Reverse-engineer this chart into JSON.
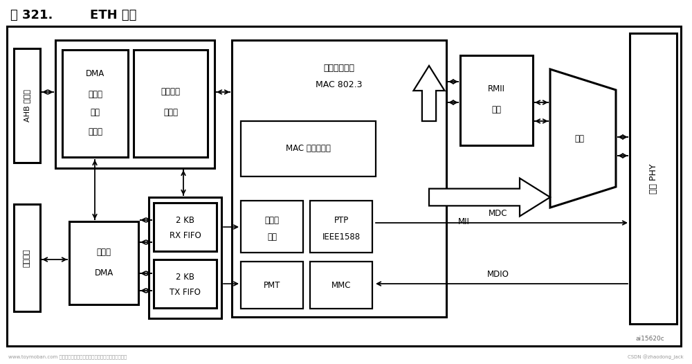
{
  "title_part1": "图 321.",
  "title_part2": "ETH 框图",
  "bg_color": "#ffffff",
  "figsize": [
    10.0,
    5.26
  ],
  "dpi": 100,
  "watermark1": "www.toymoban.com 网络图片仅供展示，非存储，如有侵权请联系删除。",
  "watermark2": "CSDN @zhaodong_jack",
  "watermark3": "ai15620c",
  "labels": {
    "ahb": "AHB 从接口",
    "bus": "总线矩阵",
    "dma_ctrl_1": "DMA",
    "dma_ctrl_2": "控制与",
    "dma_ctrl_3": "状态",
    "dma_ctrl_4": "寄存器",
    "workmode_1": "工作模式",
    "workmode_2": "寄存器",
    "eth_dma_1": "以太网",
    "eth_dma_2": "DMA",
    "rx_fifo_1": "2 KB",
    "rx_fifo_2": "RX FIFO",
    "tx_fifo_1": "2 KB",
    "tx_fifo_2": "TX FIFO",
    "mac_title_1": "介质访问控制",
    "mac_title_2": "MAC 802.3",
    "mac_reg": "MAC 控制寄存器",
    "checksum_1": "校验和",
    "checksum_2": "减荷",
    "ptp_1": "PTP",
    "ptp_2": "IEEE1588",
    "pmt": "PMT",
    "mmc": "MMC",
    "rmii_1": "RMII",
    "rmii_2": "接口",
    "select": "选择",
    "phy": "外部 PHY",
    "mii": "MII",
    "mdc": "MDC",
    "mdio": "MDIO"
  }
}
